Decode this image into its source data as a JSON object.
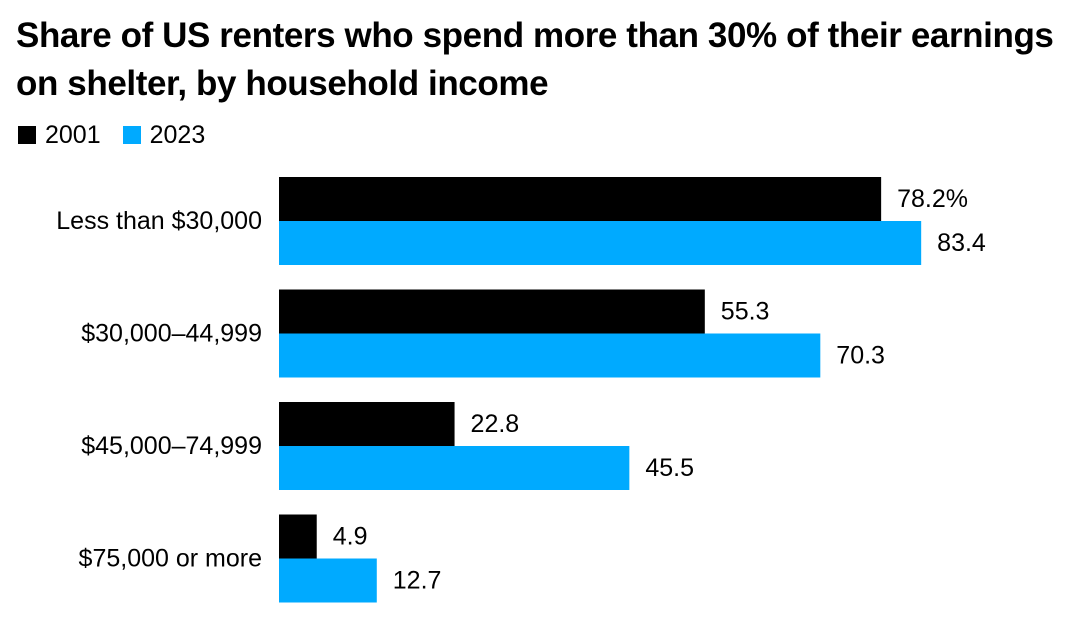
{
  "chart_data": {
    "type": "bar",
    "orientation": "horizontal",
    "title": "Share of US renters who spend more than 30% of their earnings on shelter, by household income",
    "categories": [
      "Less than $30,000",
      "$30,000–44,999",
      "$45,000–74,999",
      "$75,000 or more"
    ],
    "series": [
      {
        "name": "2001",
        "color": "#000000",
        "values": [
          78.2,
          55.3,
          22.8,
          4.9
        ],
        "labels": [
          "78.2%",
          "55.3",
          "22.8",
          "4.9"
        ]
      },
      {
        "name": "2023",
        "color": "#00aaff",
        "values": [
          83.4,
          70.3,
          45.5,
          12.7
        ],
        "labels": [
          "83.4",
          "70.3",
          "45.5",
          "12.7"
        ]
      }
    ],
    "xlim": [
      0,
      100
    ],
    "grid": false,
    "legend_position": "top-left"
  }
}
